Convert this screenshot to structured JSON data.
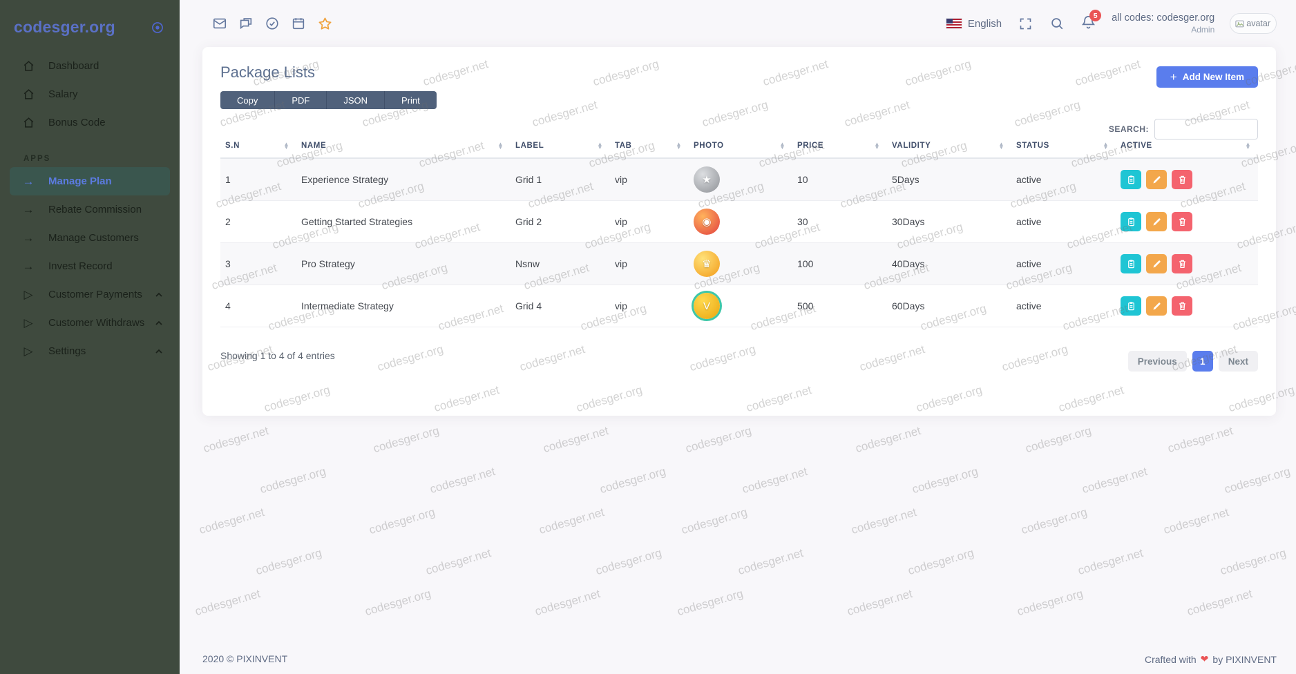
{
  "brand": {
    "name": "codesger.org"
  },
  "sidebar": {
    "main_items": [
      {
        "label": "Dashboard",
        "icon": "home-icon"
      },
      {
        "label": "Salary",
        "icon": "home-icon"
      },
      {
        "label": "Bonus Code",
        "icon": "home-icon"
      }
    ],
    "section_label": "APPS",
    "apps_items": [
      {
        "label": "Manage Plan",
        "icon": "arrow-right-icon",
        "active": true
      },
      {
        "label": "Rebate Commission",
        "icon": "arrow-right-icon"
      },
      {
        "label": "Manage Customers",
        "icon": "arrow-right-icon"
      },
      {
        "label": "Invest Record",
        "icon": "arrow-right-icon"
      },
      {
        "label": "Customer Payments",
        "icon": "play-icon",
        "chevron": true
      },
      {
        "label": "Customer Withdraws",
        "icon": "play-icon",
        "chevron": true
      },
      {
        "label": "Settings",
        "icon": "play-icon",
        "chevron": true
      }
    ]
  },
  "navbar": {
    "left_icons": [
      "mail-icon",
      "chat-icon",
      "check-circle-icon",
      "calendar-icon",
      "star-icon"
    ],
    "language": "English",
    "notification_count": "5",
    "user_title": "all codes: codesger.org",
    "user_role": "Admin",
    "avatar_alt": "avatar"
  },
  "page": {
    "title": "Package Lists",
    "export_buttons": [
      "Copy",
      "PDF",
      "JSON",
      "Print"
    ],
    "add_item_label": "Add New Item",
    "search_label": "SEARCH:",
    "search_value": "",
    "summary": "Showing 1 to 4 of 4 entries",
    "pagination": {
      "previous": "Previous",
      "current_page": "1",
      "next": "Next"
    }
  },
  "table": {
    "columns": [
      "S.N",
      "NAME",
      "LABEL",
      "TAB",
      "PHOTO",
      "PRICE",
      "VALIDITY",
      "STATUS",
      "ACTIVE"
    ],
    "rows": [
      {
        "sn": "1",
        "name": "Experience Strategy",
        "label": "Grid 1",
        "tab": "vip",
        "photo": "silver-wings-badge",
        "photo_colors": [
          "#dcdee1",
          "#8e9196"
        ],
        "price": "10",
        "validity": "5Days",
        "status": "active"
      },
      {
        "sn": "2",
        "name": "Getting Started Strategies",
        "label": "Grid 2",
        "tab": "vip",
        "photo": "red-emblem-badge",
        "photo_colors": [
          "#ffb35c",
          "#e2403f"
        ],
        "price": "30",
        "validity": "30Days",
        "status": "active"
      },
      {
        "sn": "3",
        "name": "Pro Strategy",
        "label": "Nsnw",
        "tab": "vip",
        "photo": "gold-crown-badge",
        "photo_colors": [
          "#ffe27a",
          "#f29a18"
        ],
        "price": "100",
        "validity": "40Days",
        "status": "active"
      },
      {
        "sn": "4",
        "name": "Intermediate Strategy",
        "label": "Grid 4",
        "tab": "vip",
        "photo": "gold-shield-badge",
        "photo_colors": [
          "#ffd94f",
          "#eaa50e"
        ],
        "photo_ring": "#3ec7a8",
        "price": "500",
        "validity": "60Days",
        "status": "active"
      }
    ],
    "actions": [
      {
        "name": "view-action",
        "icon": "clipboard-icon",
        "color": "#1fc5d4"
      },
      {
        "name": "edit-action",
        "icon": "pencil-icon",
        "color": "#f3a74b"
      },
      {
        "name": "delete-action",
        "icon": "trash-icon",
        "color": "#f4636e"
      }
    ]
  },
  "footer": {
    "left": "2020 © PIXINVENT",
    "crafted_prefix": "Crafted with",
    "heart": "❤",
    "crafted_suffix": "by PIXINVENT"
  },
  "colors": {
    "accent_blue": "#5a7ded",
    "danger": "#ea5455",
    "star_orange": "#f0a23c",
    "sidebar_bg": "#3f4a3e"
  },
  "watermark": {
    "texts": [
      "codesger.org",
      "codesger.net"
    ]
  }
}
